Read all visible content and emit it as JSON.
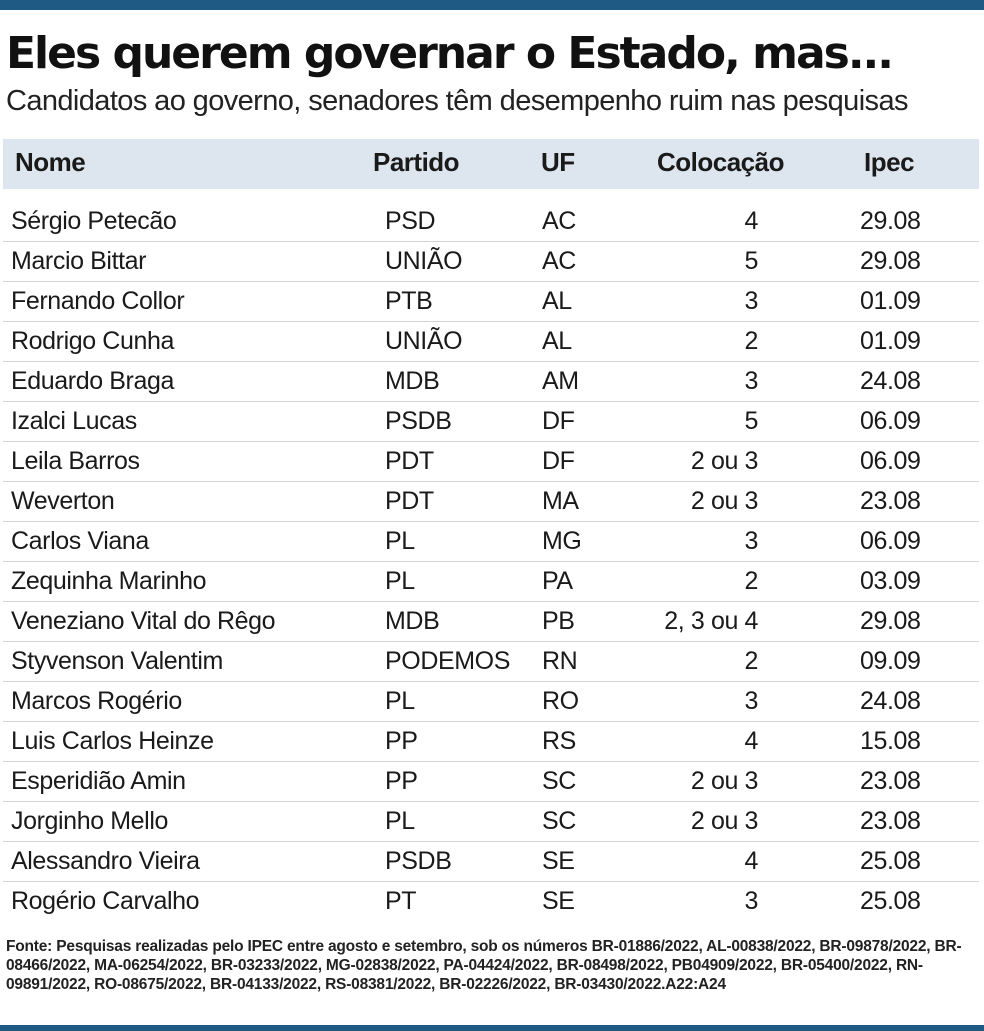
{
  "title": "Eles querem governar o Estado, mas...",
  "subtitle": "Candidatos ao governo, senadores têm desempenho ruim nas pesquisas",
  "colors": {
    "accent": "#1f5a85",
    "header_bg": "#dde6ee"
  },
  "table": {
    "headers": {
      "nome": "Nome",
      "partido": "Partido",
      "uf": "UF",
      "colocacao": "Colocação",
      "ipec": "Ipec"
    },
    "rows": [
      {
        "nome": "Sérgio Petecão",
        "partido": "PSD",
        "uf": "AC",
        "colocacao": "4",
        "ipec": "29.08"
      },
      {
        "nome": "Marcio Bittar",
        "partido": "UNIÃO",
        "uf": "AC",
        "colocacao": "5",
        "ipec": "29.08"
      },
      {
        "nome": "Fernando Collor",
        "partido": "PTB",
        "uf": "AL",
        "colocacao": "3",
        "ipec": "01.09"
      },
      {
        "nome": "Rodrigo Cunha",
        "partido": "UNIÃO",
        "uf": "AL",
        "colocacao": "2",
        "ipec": "01.09"
      },
      {
        "nome": "Eduardo Braga",
        "partido": "MDB",
        "uf": "AM",
        "colocacao": "3",
        "ipec": "24.08"
      },
      {
        "nome": "Izalci Lucas",
        "partido": "PSDB",
        "uf": "DF",
        "colocacao": "5",
        "ipec": "06.09"
      },
      {
        "nome": "Leila Barros",
        "partido": "PDT",
        "uf": "DF",
        "colocacao": "2 ou 3",
        "ipec": "06.09"
      },
      {
        "nome": "Weverton",
        "partido": "PDT",
        "uf": "MA",
        "colocacao": "2 ou 3",
        "ipec": "23.08"
      },
      {
        "nome": "Carlos Viana",
        "partido": "PL",
        "uf": "MG",
        "colocacao": "3",
        "ipec": "06.09"
      },
      {
        "nome": "Zequinha Marinho",
        "partido": "PL",
        "uf": "PA",
        "colocacao": "2",
        "ipec": "03.09"
      },
      {
        "nome": "Veneziano Vital do Rêgo",
        "partido": "MDB",
        "uf": "PB",
        "colocacao": "2, 3 ou 4",
        "ipec": "29.08"
      },
      {
        "nome": "Styvenson Valentim",
        "partido": "PODEMOS",
        "uf": "RN",
        "colocacao": "2",
        "ipec": "09.09"
      },
      {
        "nome": "Marcos Rogério",
        "partido": "PL",
        "uf": "RO",
        "colocacao": "3",
        "ipec": "24.08"
      },
      {
        "nome": "Luis Carlos Heinze",
        "partido": "PP",
        "uf": "RS",
        "colocacao": "4",
        "ipec": "15.08"
      },
      {
        "nome": "Esperidião Amin",
        "partido": "PP",
        "uf": "SC",
        "colocacao": "2 ou 3",
        "ipec": "23.08"
      },
      {
        "nome": "Jorginho Mello",
        "partido": "PL",
        "uf": "SC",
        "colocacao": "2 ou 3",
        "ipec": "23.08"
      },
      {
        "nome": "Alessandro Vieira",
        "partido": "PSDB",
        "uf": "SE",
        "colocacao": "4",
        "ipec": "25.08"
      },
      {
        "nome": "Rogério Carvalho",
        "partido": "PT",
        "uf": "SE",
        "colocacao": "3",
        "ipec": "25.08"
      }
    ]
  },
  "source": "Fonte: Pesquisas realizadas pelo IPEC entre agosto e setembro, sob os números BR-01886/2022, AL-00838/2022, BR-09878/2022, BR-08466/2022, MA-06254/2022, BR-03233/2022, MG-02838/2022, PA-04424/2022, BR-08498/2022, PB04909/2022, BR-05400/2022, RN-09891/2022, RO-08675/2022, BR-04133/2022, RS-08381/2022, BR-02226/2022, BR-03430/2022.A22:A24"
}
